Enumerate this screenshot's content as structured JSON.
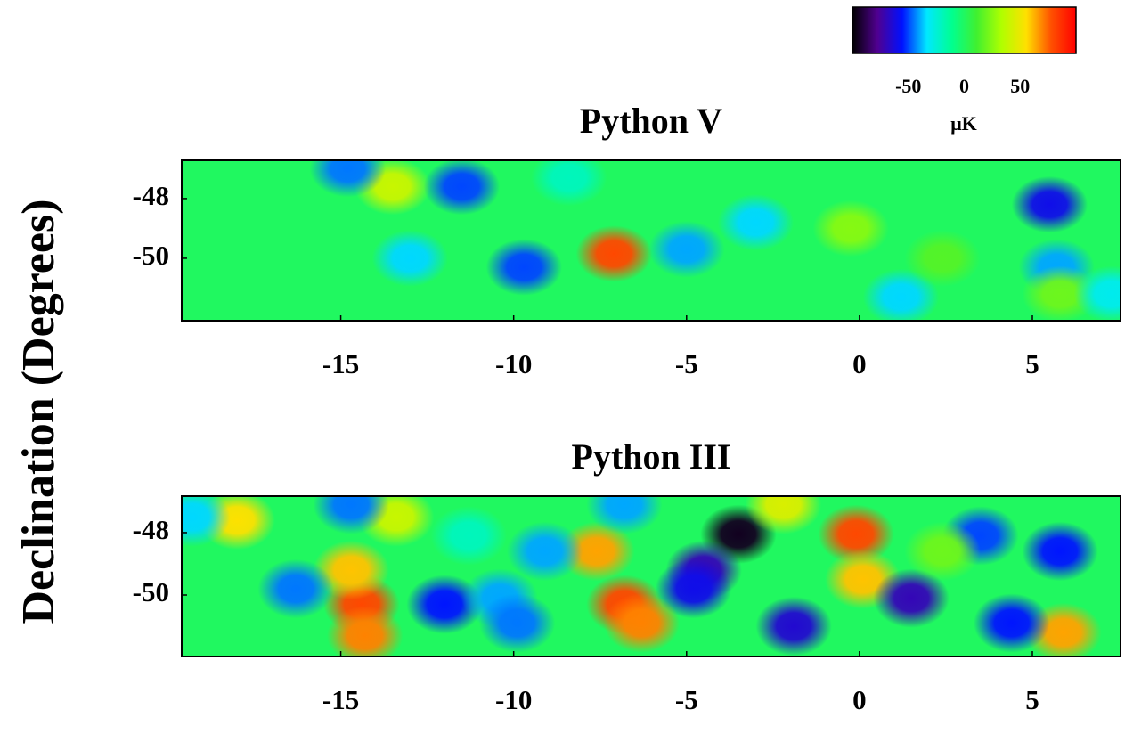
{
  "ylabel": "Declination (Degrees)",
  "colorbar": {
    "label": "μK",
    "lim": [
      -100,
      100
    ],
    "ticks": [
      -50,
      0,
      50
    ],
    "colors": [
      "#000000",
      "#500090",
      "#0010ff",
      "#00e8ff",
      "#00ff90",
      "#40f030",
      "#b0ff00",
      "#ffe000",
      "#ff5000",
      "#ff0000"
    ]
  },
  "chart_data": [
    {
      "type": "heatmap",
      "title": "Python V",
      "xlim": [
        -19.6,
        7.55
      ],
      "ylim": [
        -52.09,
        -46.72
      ],
      "xticks": [
        -15,
        -10,
        -5,
        0,
        5
      ],
      "yticks": [
        -48,
        -50
      ],
      "x": [
        -7.1,
        -13.5,
        -11.5,
        -9.7,
        -14.8,
        -13.0,
        -5.0,
        -3.0,
        5.5,
        5.7,
        1.2,
        -0.25,
        5.8,
        2.4,
        -8.4,
        7.3
      ],
      "y": [
        -49.85,
        -47.6,
        -47.6,
        -50.3,
        -47.0,
        -50.0,
        -49.7,
        -48.8,
        -48.2,
        -50.3,
        -51.3,
        -49.0,
        -51.2,
        -50.0,
        -47.3,
        -51.2
      ],
      "values": [
        80,
        40,
        -50,
        -50,
        -45,
        -35,
        -40,
        -35,
        -60,
        -40,
        -35,
        25,
        20,
        15,
        -20,
        -30
      ]
    },
    {
      "type": "heatmap",
      "title": "Python III",
      "xlim": [
        -19.6,
        7.55
      ],
      "ylim": [
        -51.97,
        -46.83
      ],
      "xticks": [
        -15,
        -10,
        -5,
        0,
        5
      ],
      "yticks": [
        -48,
        -50
      ],
      "x": [
        -3.5,
        -4.5,
        -4.8,
        -0.1,
        0.1,
        -14.4,
        -14.7,
        -14.3,
        -7.6,
        -6.8,
        -6.3,
        -18.0,
        -13.4,
        5.9,
        -2.2,
        1.5,
        -1.9,
        3.5,
        5.8,
        4.4,
        -16.3,
        -12.0,
        -10.4,
        -9.9,
        -9.1,
        -14.7,
        -19.3,
        -6.8,
        -11.3,
        2.4
      ],
      "y": [
        -48.05,
        -49.2,
        -49.8,
        -48.05,
        -49.5,
        -50.3,
        -49.2,
        -51.3,
        -48.6,
        -50.3,
        -50.9,
        -47.6,
        -47.5,
        -51.2,
        -47.1,
        -50.1,
        -51.0,
        -48.1,
        -48.6,
        -50.9,
        -49.8,
        -50.3,
        -50.1,
        -50.9,
        -48.6,
        -47.1,
        -47.5,
        -47.1,
        -48.1,
        -48.6
      ],
      "values": [
        -95,
        -70,
        -60,
        80,
        60,
        80,
        60,
        70,
        65,
        80,
        70,
        55,
        40,
        65,
        45,
        -70,
        -65,
        -50,
        -55,
        -55,
        -45,
        -55,
        -40,
        -45,
        -40,
        -45,
        -35,
        -40,
        -20,
        20
      ]
    }
  ]
}
